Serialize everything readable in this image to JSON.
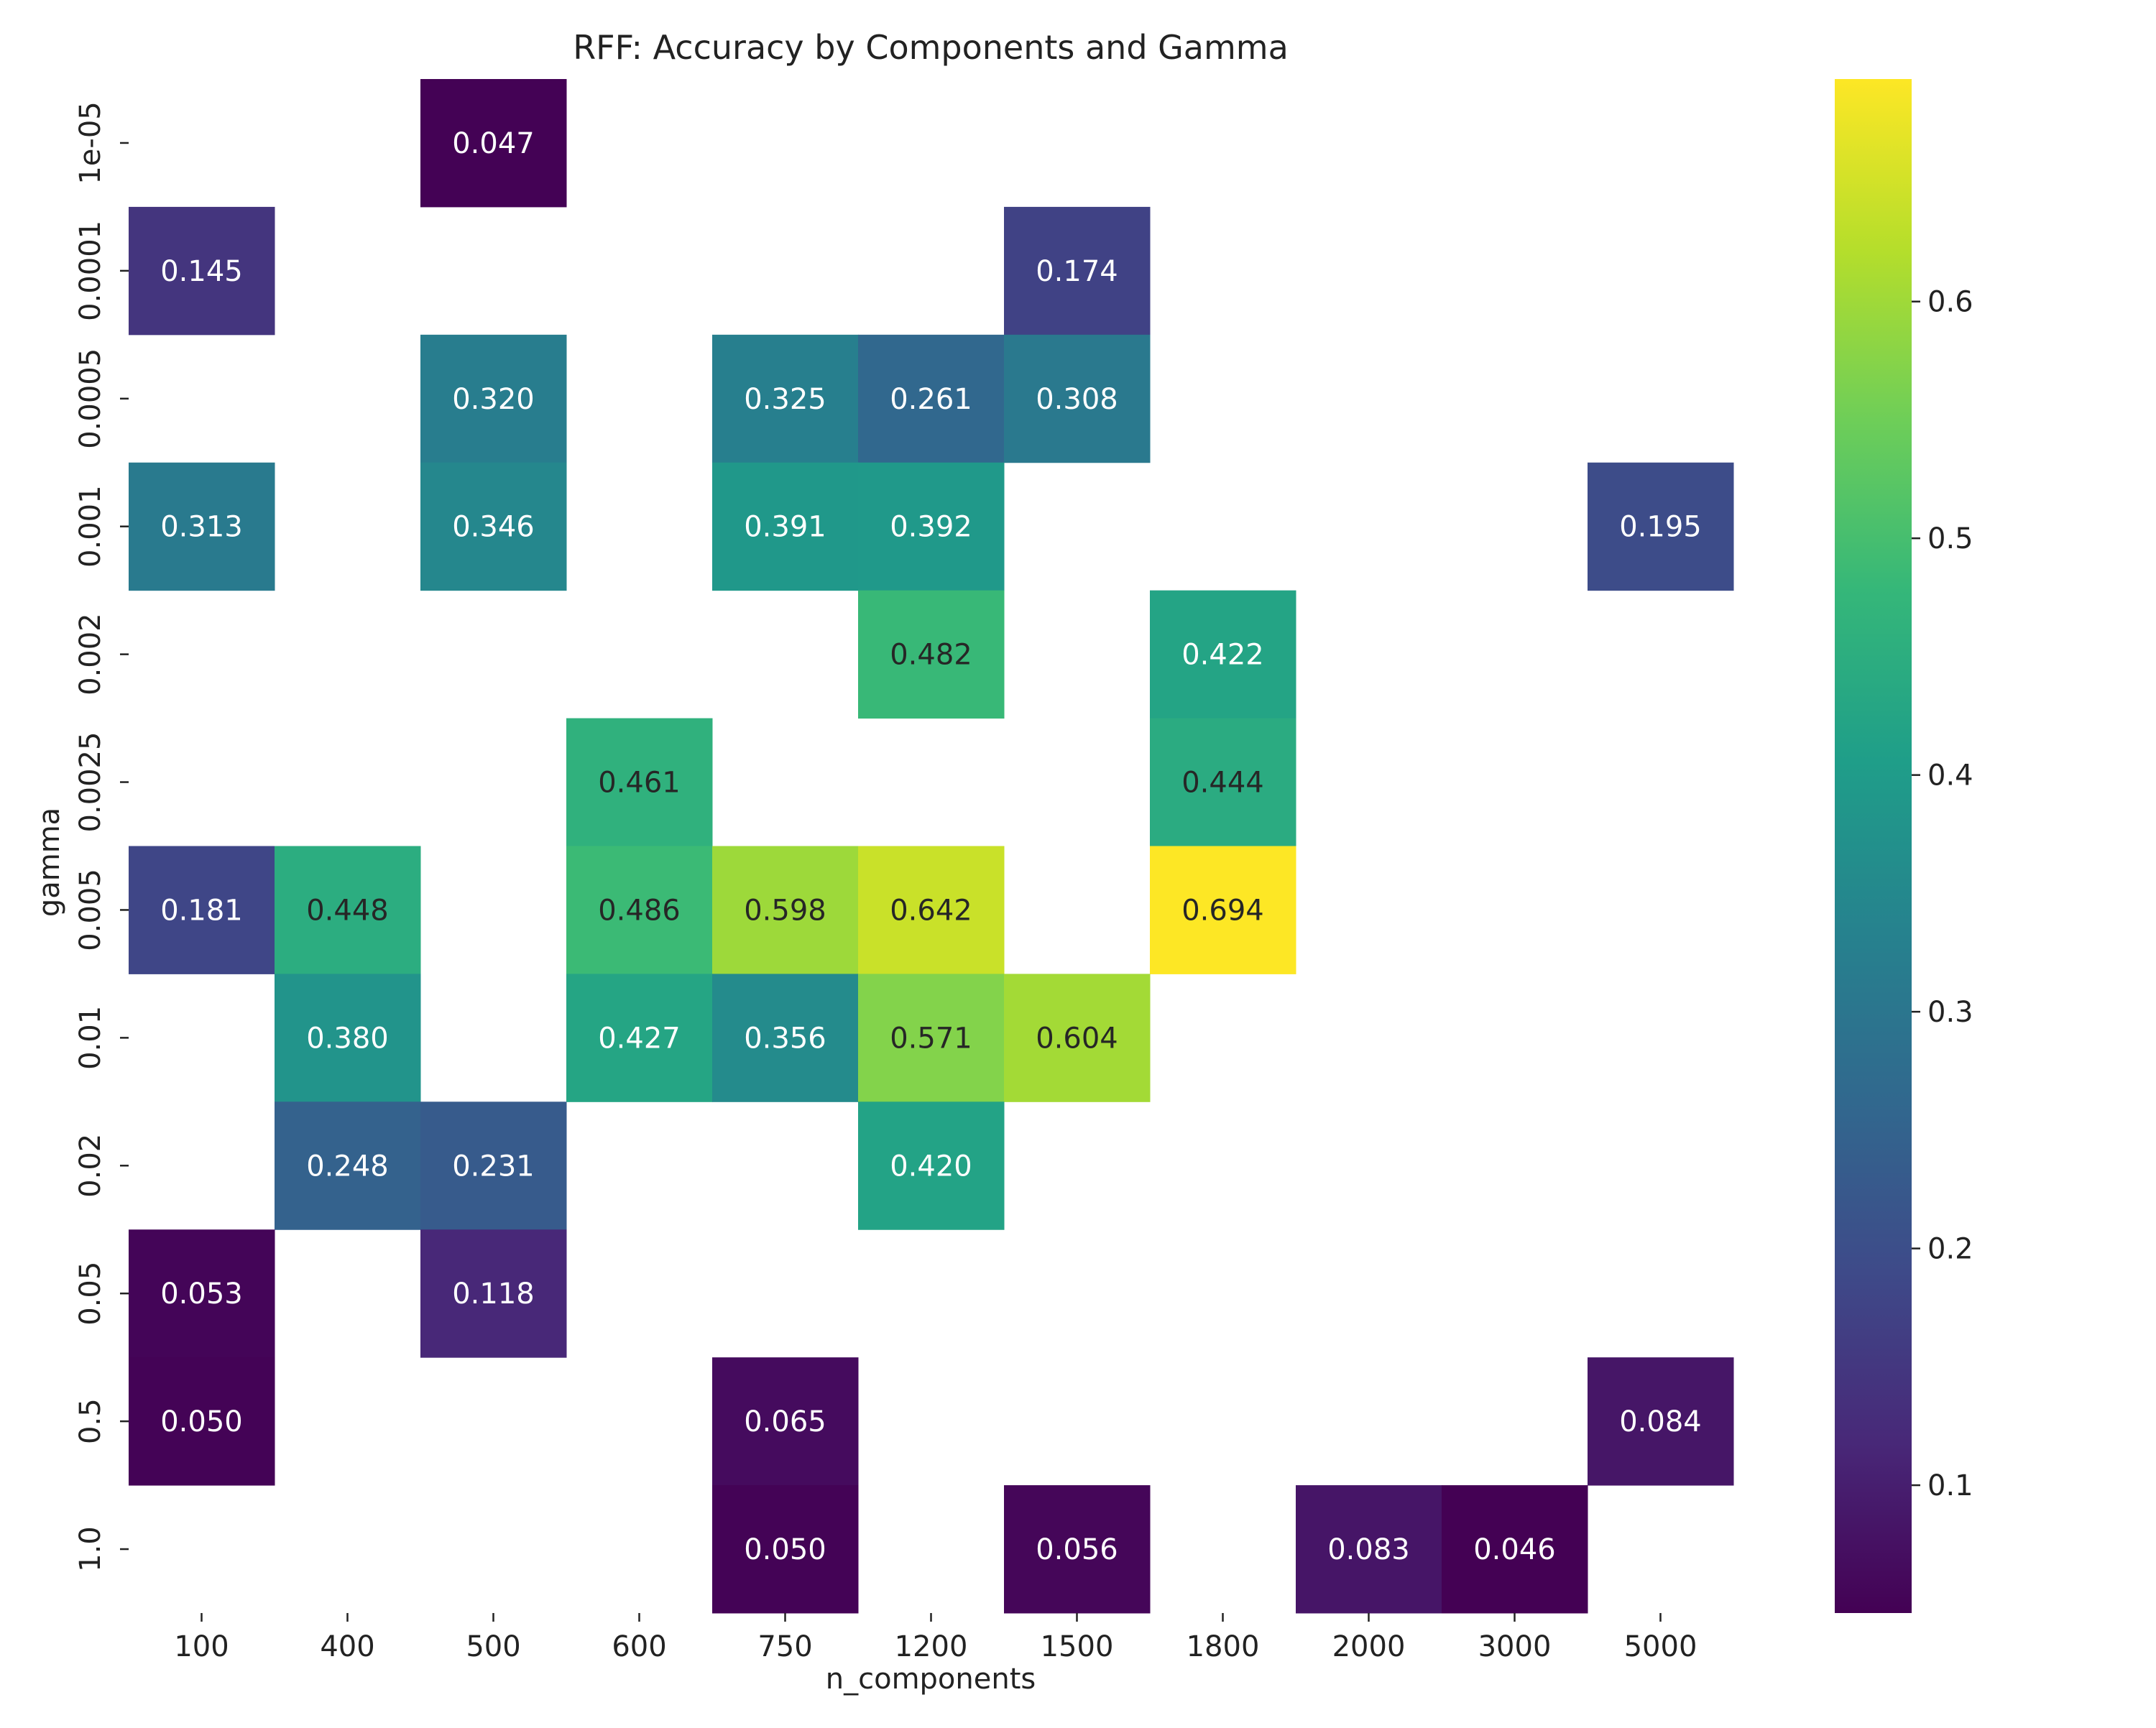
{
  "chart_data": {
    "type": "heatmap",
    "title": "RFF: Accuracy by Components and Gamma",
    "xlabel": "n_components",
    "ylabel": "gamma",
    "x_categories": [
      "100",
      "400",
      "500",
      "600",
      "750",
      "1200",
      "1500",
      "1800",
      "2000",
      "3000",
      "5000"
    ],
    "y_categories": [
      "1e-05",
      "0.0001",
      "0.0005",
      "0.001",
      "0.002",
      "0.0025",
      "0.005",
      "0.01",
      "0.02",
      "0.05",
      "0.5",
      "1.0"
    ],
    "cells": [
      {
        "x": "500",
        "y": "1e-05",
        "value": 0.047,
        "label": "0.047"
      },
      {
        "x": "100",
        "y": "0.0001",
        "value": 0.145,
        "label": "0.145"
      },
      {
        "x": "1500",
        "y": "0.0001",
        "value": 0.174,
        "label": "0.174"
      },
      {
        "x": "500",
        "y": "0.0005",
        "value": 0.32,
        "label": "0.320"
      },
      {
        "x": "750",
        "y": "0.0005",
        "value": 0.325,
        "label": "0.325"
      },
      {
        "x": "1200",
        "y": "0.0005",
        "value": 0.261,
        "label": "0.261"
      },
      {
        "x": "1500",
        "y": "0.0005",
        "value": 0.308,
        "label": "0.308"
      },
      {
        "x": "100",
        "y": "0.001",
        "value": 0.313,
        "label": "0.313"
      },
      {
        "x": "500",
        "y": "0.001",
        "value": 0.346,
        "label": "0.346"
      },
      {
        "x": "750",
        "y": "0.001",
        "value": 0.391,
        "label": "0.391"
      },
      {
        "x": "1200",
        "y": "0.001",
        "value": 0.392,
        "label": "0.392"
      },
      {
        "x": "5000",
        "y": "0.001",
        "value": 0.195,
        "label": "0.195"
      },
      {
        "x": "1200",
        "y": "0.002",
        "value": 0.482,
        "label": "0.482"
      },
      {
        "x": "1800",
        "y": "0.002",
        "value": 0.422,
        "label": "0.422"
      },
      {
        "x": "600",
        "y": "0.0025",
        "value": 0.461,
        "label": "0.461"
      },
      {
        "x": "1800",
        "y": "0.0025",
        "value": 0.444,
        "label": "0.444"
      },
      {
        "x": "100",
        "y": "0.005",
        "value": 0.181,
        "label": "0.181"
      },
      {
        "x": "400",
        "y": "0.005",
        "value": 0.448,
        "label": "0.448"
      },
      {
        "x": "600",
        "y": "0.005",
        "value": 0.486,
        "label": "0.486"
      },
      {
        "x": "750",
        "y": "0.005",
        "value": 0.598,
        "label": "0.598"
      },
      {
        "x": "1200",
        "y": "0.005",
        "value": 0.642,
        "label": "0.642"
      },
      {
        "x": "1800",
        "y": "0.005",
        "value": 0.694,
        "label": "0.694"
      },
      {
        "x": "400",
        "y": "0.01",
        "value": 0.38,
        "label": "0.380"
      },
      {
        "x": "600",
        "y": "0.01",
        "value": 0.427,
        "label": "0.427"
      },
      {
        "x": "750",
        "y": "0.01",
        "value": 0.356,
        "label": "0.356"
      },
      {
        "x": "1200",
        "y": "0.01",
        "value": 0.571,
        "label": "0.571"
      },
      {
        "x": "1500",
        "y": "0.01",
        "value": 0.604,
        "label": "0.604"
      },
      {
        "x": "400",
        "y": "0.02",
        "value": 0.248,
        "label": "0.248"
      },
      {
        "x": "500",
        "y": "0.02",
        "value": 0.231,
        "label": "0.231"
      },
      {
        "x": "1200",
        "y": "0.02",
        "value": 0.42,
        "label": "0.420"
      },
      {
        "x": "100",
        "y": "0.05",
        "value": 0.053,
        "label": "0.053"
      },
      {
        "x": "500",
        "y": "0.05",
        "value": 0.118,
        "label": "0.118"
      },
      {
        "x": "100",
        "y": "0.5",
        "value": 0.05,
        "label": "0.050"
      },
      {
        "x": "750",
        "y": "0.5",
        "value": 0.065,
        "label": "0.065"
      },
      {
        "x": "5000",
        "y": "0.5",
        "value": 0.084,
        "label": "0.084"
      },
      {
        "x": "750",
        "y": "1.0",
        "value": 0.05,
        "label": "0.050"
      },
      {
        "x": "1500",
        "y": "1.0",
        "value": 0.056,
        "label": "0.056"
      },
      {
        "x": "2000",
        "y": "1.0",
        "value": 0.083,
        "label": "0.083"
      },
      {
        "x": "3000",
        "y": "1.0",
        "value": 0.046,
        "label": "0.046"
      }
    ],
    "colormap": "viridis",
    "color_range": [
      0.046,
      0.694
    ],
    "colorbar_ticks": [
      {
        "value": 0.1,
        "label": "0.1"
      },
      {
        "value": 0.2,
        "label": "0.2"
      },
      {
        "value": 0.3,
        "label": "0.3"
      },
      {
        "value": 0.4,
        "label": "0.4"
      },
      {
        "value": 0.5,
        "label": "0.5"
      },
      {
        "value": 0.6,
        "label": "0.6"
      }
    ],
    "missing_cells": "blank",
    "grid": false,
    "legend": "colorbar-right"
  }
}
